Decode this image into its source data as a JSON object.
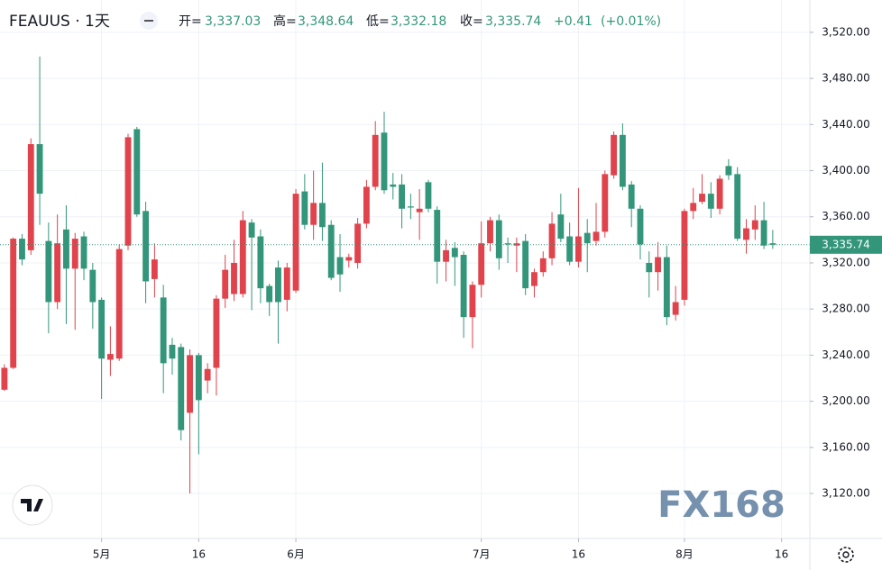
{
  "chart_data": {
    "type": "candlestick",
    "title": "FEAUUS · 1天",
    "legend_values": [
      {
        "label": "开=",
        "value": "3,337.03"
      },
      {
        "label": "高=",
        "value": "3,348.64"
      },
      {
        "label": "低=",
        "value": "3,332.18"
      },
      {
        "label": "收=",
        "value": "3,335.74"
      }
    ],
    "change": "+0.41",
    "change_pct": "(+0.01%)",
    "watermark": "FX168",
    "up_color": "#e0434c",
    "down_color": "#33967a",
    "grid": true,
    "last_price": {
      "value": 3335.74,
      "label": "3,335.74"
    },
    "xlim": [
      -0.5,
      91.2
    ],
    "xticks": [
      {
        "value": 11,
        "label": "5月"
      },
      {
        "value": 22,
        "label": "16"
      },
      {
        "value": 33,
        "label": "6月"
      },
      {
        "value": 54,
        "label": "7月"
      },
      {
        "value": 65,
        "label": "16"
      },
      {
        "value": 77,
        "label": "8月"
      },
      {
        "value": 88,
        "label": "16"
      }
    ],
    "ylim": [
      3081,
      3548
    ],
    "yticks": [
      {
        "value": 3120,
        "label": "3,120.00"
      },
      {
        "value": 3160,
        "label": "3,160.00"
      },
      {
        "value": 3200,
        "label": "3,200.00"
      },
      {
        "value": 3240,
        "label": "3,240.00"
      },
      {
        "value": 3280,
        "label": "3,280.00"
      },
      {
        "value": 3320,
        "label": "3,320.00"
      },
      {
        "value": 3360,
        "label": "3,360.00"
      },
      {
        "value": 3400,
        "label": "3,400.00"
      },
      {
        "value": 3440,
        "label": "3,440.00"
      },
      {
        "value": 3480,
        "label": "3,480.00"
      },
      {
        "value": 3520,
        "label": "3,520.00"
      }
    ],
    "open": [
      3210,
      3229,
      3341,
      3331,
      3423,
      3339,
      3286,
      3349,
      3315,
      3343,
      3314,
      3288,
      3236,
      3237,
      3335,
      3436,
      3365,
      3306,
      3290,
      3249,
      3247,
      3190,
      3240,
      3218,
      3229,
      3289,
      3293,
      3293,
      3355,
      3343,
      3300,
      3316,
      3288,
      3296,
      3382,
      3353,
      3372,
      3353,
      3325,
      3322,
      3320,
      3354,
      3386,
      3433,
      3388,
      3388,
      3369,
      3364,
      3390,
      3366,
      3321,
      3333,
      3327,
      3273,
      3301,
      3337,
      3357,
      3337,
      3335,
      3339,
      3300,
      3312,
      3324,
      3362,
      3343,
      3321,
      3346,
      3339,
      3347,
      3396,
      3431,
      3388,
      3367,
      3320,
      3312,
      3325,
      3275,
      3288,
      3365,
      3373,
      3380,
      3367,
      3404,
      3397,
      3340,
      3349,
      3357,
      3337.03
    ],
    "high": [
      3232,
      3342,
      3345,
      3428,
      3499,
      3355,
      3362,
      3370,
      3346,
      3347,
      3320,
      3290,
      3265,
      3336,
      3432,
      3438,
      3373,
      3337,
      3301,
      3255,
      3250,
      3245,
      3242,
      3233,
      3292,
      3327,
      3340,
      3365,
      3358,
      3349,
      3302,
      3322,
      3320,
      3384,
      3397,
      3400,
      3407,
      3357,
      3345,
      3328,
      3359,
      3392,
      3443,
      3451,
      3398,
      3397,
      3380,
      3384,
      3392,
      3369,
      3340,
      3338,
      3330,
      3304,
      3356,
      3360,
      3362,
      3342,
      3342,
      3345,
      3315,
      3330,
      3364,
      3380,
      3355,
      3385,
      3358,
      3372,
      3400,
      3434,
      3441,
      3391,
      3370,
      3330,
      3338,
      3335,
      3300,
      3367,
      3385,
      3397,
      3390,
      3396,
      3410,
      3403,
      3358,
      3370,
      3373,
      3348.64
    ],
    "low": [
      3209,
      3228,
      3318,
      3327,
      3353,
      3259,
      3280,
      3267,
      3262,
      3305,
      3263,
      3202,
      3222,
      3235,
      3331,
      3360,
      3285,
      3290,
      3207,
      3223,
      3166,
      3120,
      3154,
      3207,
      3205,
      3281,
      3287,
      3290,
      3279,
      3285,
      3274,
      3250,
      3278,
      3294,
      3349,
      3340,
      3339,
      3305,
      3295,
      3316,
      3315,
      3350,
      3383,
      3380,
      3375,
      3350,
      3358,
      3340,
      3364,
      3302,
      3304,
      3300,
      3255,
      3246,
      3290,
      3330,
      3314,
      3320,
      3312,
      3292,
      3290,
      3308,
      3318,
      3338,
      3318,
      3316,
      3312,
      3335,
      3342,
      3393,
      3383,
      3351,
      3323,
      3290,
      3296,
      3266,
      3270,
      3283,
      3358,
      3371,
      3359,
      3362,
      3392,
      3339,
      3328,
      3340,
      3332,
      3332.18
    ],
    "close": [
      3229,
      3341,
      3323,
      3423,
      3380,
      3286,
      3337,
      3315,
      3341,
      3315,
      3286,
      3237,
      3241,
      3332,
      3429,
      3362,
      3304,
      3323,
      3233,
      3237,
      3175,
      3240,
      3201,
      3228,
      3289,
      3314,
      3320,
      3357,
      3342,
      3298,
      3286,
      3286,
      3316,
      3380,
      3353,
      3372,
      3351,
      3307,
      3310,
      3325,
      3354,
      3386,
      3431,
      3383,
      3386,
      3367,
      3368,
      3367,
      3367,
      3321,
      3331,
      3325,
      3273,
      3301,
      3337,
      3357,
      3324,
      3336,
      3337,
      3298,
      3312,
      3324,
      3354,
      3341,
      3321,
      3343,
      3337,
      3347,
      3397,
      3431,
      3386,
      3367,
      3336,
      3312,
      3325,
      3273,
      3286,
      3365,
      3372,
      3380,
      3367,
      3393,
      3396,
      3341,
      3350,
      3357,
      3335,
      3335.74
    ]
  }
}
